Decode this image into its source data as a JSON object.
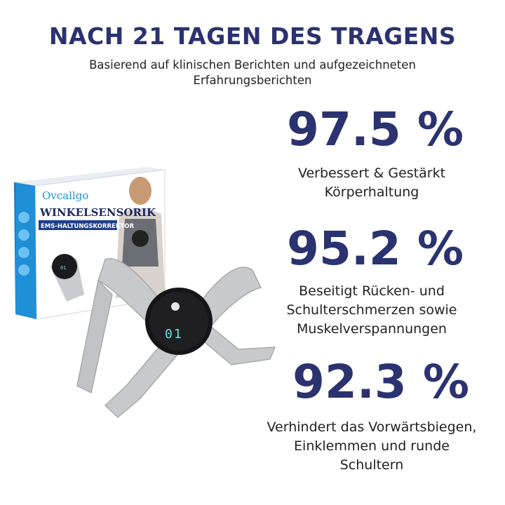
{
  "headline": "NACH 21 TAGEN DES TRAGENS",
  "subheadline_line1": "Basierend auf klinischen Berichten und aufgezeichneten",
  "subheadline_line2": "Erfahrungsberichten",
  "stats": [
    {
      "value": "97.5 %",
      "line1": "Verbessert & Gestärkt",
      "line2": "Körperhaltung"
    },
    {
      "value": "95.2 %",
      "line1": "Beseitigt Rücken- und",
      "line2": "Schulterschmerzen sowie",
      "line3": "Muskelverspannungen"
    },
    {
      "value": "92.3 %",
      "line1": "Verhindert das Vorwärtsbiegen,",
      "line2": "Einklemmen und runde",
      "line3": "Schultern"
    }
  ],
  "product": {
    "brand": "Ovcallgo",
    "box_title": "WINKELSENSORIK",
    "box_subtitle": "EMS-HALTUNGSKORREKTOR",
    "display_value": "01",
    "box_display_value": "01"
  },
  "colors": {
    "accent": "#2b3270",
    "text": "#222222",
    "box_blue": "#1f8fd6",
    "display": "#5fe3e0"
  }
}
